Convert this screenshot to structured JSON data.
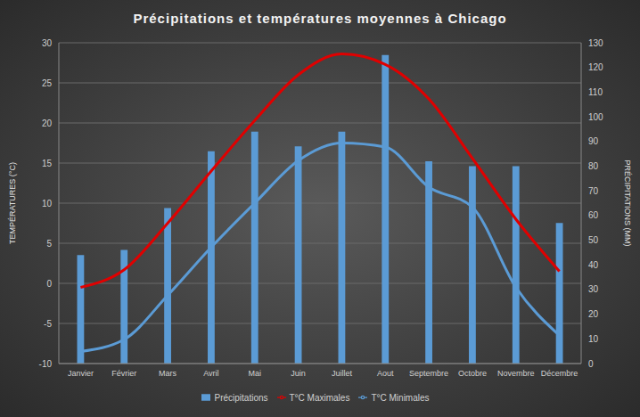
{
  "chart_data": {
    "type": "bar",
    "title": "Précipitations et températures moyennes à Chicago",
    "categories": [
      "Janvier",
      "Février",
      "Mars",
      "Avril",
      "Mai",
      "Juin",
      "Juillet",
      "Aout",
      "Septembre",
      "Octobre",
      "Novembre",
      "Décembre"
    ],
    "series": [
      {
        "name": "Précipitations",
        "type": "bar",
        "axis": "y2",
        "color": "#5b9bd5",
        "values": [
          44,
          46,
          63,
          86,
          94,
          88,
          94,
          125,
          82,
          80,
          80,
          57
        ]
      },
      {
        "name": "T°C Minimales",
        "type": "line",
        "color": "#5b9bd5",
        "marker": "none",
        "line_style": "solid",
        "values": [
          -8.5,
          -7,
          -1.5,
          4.5,
          10,
          15.3,
          17.5,
          17,
          12,
          9.5,
          -0.5,
          -6.5
        ]
      },
      {
        "name": "T°C Maximales",
        "type": "line",
        "color": "#e00000",
        "marker": "none",
        "line_style": "solid",
        "values": [
          -0.5,
          1.7,
          7.5,
          14,
          20.3,
          26,
          28.6,
          27.3,
          23,
          15.6,
          8,
          1.5
        ]
      }
    ],
    "ylabel": "TEMPÉRATURES (°C)",
    "y2label": "PRÉCIPITATIONS (MM)",
    "ylim": [
      -10,
      30
    ],
    "yticks": [
      -10,
      -5,
      0,
      5,
      10,
      15,
      20,
      25,
      30
    ],
    "y2lim": [
      0,
      130
    ],
    "y2ticks": [
      0,
      10,
      20,
      30,
      40,
      50,
      60,
      70,
      80,
      90,
      100,
      110,
      120,
      130
    ],
    "grid": true,
    "legend": "bottom"
  }
}
